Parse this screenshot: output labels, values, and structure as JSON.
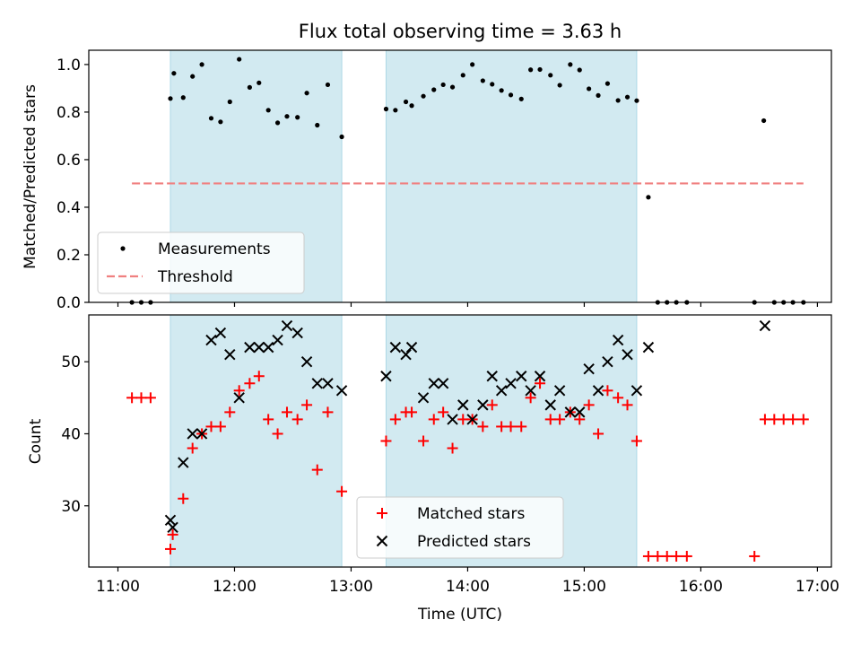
{
  "chart_data": {
    "title": "Flux total observing time = 3.63 h",
    "xlabel": "Time (UTC)",
    "x_unit": "hours UTC",
    "xlim": [
      10.75,
      17.12
    ],
    "xticks": [
      {
        "value": 11,
        "label": "11:00"
      },
      {
        "value": 12,
        "label": "12:00"
      },
      {
        "value": 13,
        "label": "13:00"
      },
      {
        "value": 14,
        "label": "14:00"
      },
      {
        "value": 15,
        "label": "15:00"
      },
      {
        "value": 16,
        "label": "16:00"
      },
      {
        "value": 17,
        "label": "17:00"
      }
    ],
    "observing_windows": [
      [
        11.45,
        12.92
      ],
      [
        13.3,
        15.45
      ]
    ],
    "window_color": "#add8e6",
    "panels": [
      {
        "type": "scatter",
        "ylabel": "Matched/Predicted stars",
        "ylim": [
          0.0,
          1.06
        ],
        "yticks": [
          {
            "value": 0.0,
            "label": "0.0"
          },
          {
            "value": 0.2,
            "label": "0.2"
          },
          {
            "value": 0.4,
            "label": "0.4"
          },
          {
            "value": 0.6,
            "label": "0.6"
          },
          {
            "value": 0.8,
            "label": "0.8"
          },
          {
            "value": 1.0,
            "label": "1.0"
          }
        ],
        "legend": {
          "position": "lower left",
          "entries": [
            {
              "label": "Measurements",
              "marker": "dot",
              "color": "#000000"
            },
            {
              "label": "Threshold",
              "marker": "dashed-line",
              "color": "#f08080"
            }
          ]
        },
        "threshold": {
          "y": 0.5,
          "x": [
            11.12,
            16.88
          ],
          "color": "#f08080"
        },
        "series": [
          {
            "name": "Measurements",
            "color": "#000000",
            "points": [
              [
                11.12,
                0.0
              ],
              [
                11.2,
                0.0
              ],
              [
                11.28,
                0.0
              ],
              [
                11.45,
                0.857
              ],
              [
                11.48,
                0.963
              ],
              [
                11.56,
                0.861
              ],
              [
                11.64,
                0.95
              ],
              [
                11.72,
                1.0
              ],
              [
                11.8,
                0.774
              ],
              [
                11.88,
                0.759
              ],
              [
                11.96,
                0.843
              ],
              [
                12.04,
                1.022
              ],
              [
                12.13,
                0.904
              ],
              [
                12.21,
                0.923
              ],
              [
                12.29,
                0.808
              ],
              [
                12.37,
                0.755
              ],
              [
                12.45,
                0.782
              ],
              [
                12.54,
                0.778
              ],
              [
                12.62,
                0.88
              ],
              [
                12.71,
                0.745
              ],
              [
                12.8,
                0.915
              ],
              [
                12.92,
                0.696
              ],
              [
                13.3,
                0.813
              ],
              [
                13.38,
                0.808
              ],
              [
                13.47,
                0.843
              ],
              [
                13.52,
                0.827
              ],
              [
                13.62,
                0.867
              ],
              [
                13.71,
                0.894
              ],
              [
                13.79,
                0.915
              ],
              [
                13.87,
                0.905
              ],
              [
                13.96,
                0.955
              ],
              [
                14.04,
                1.0
              ],
              [
                14.13,
                0.932
              ],
              [
                14.21,
                0.917
              ],
              [
                14.29,
                0.891
              ],
              [
                14.37,
                0.872
              ],
              [
                14.46,
                0.855
              ],
              [
                14.54,
                0.978
              ],
              [
                14.62,
                0.979
              ],
              [
                14.71,
                0.955
              ],
              [
                14.79,
                0.913
              ],
              [
                14.88,
                1.0
              ],
              [
                14.96,
                0.977
              ],
              [
                15.04,
                0.898
              ],
              [
                15.12,
                0.87
              ],
              [
                15.2,
                0.92
              ],
              [
                15.29,
                0.849
              ],
              [
                15.37,
                0.863
              ],
              [
                15.45,
                0.848
              ],
              [
                15.55,
                0.442
              ],
              [
                15.63,
                0.0
              ],
              [
                15.71,
                0.0
              ],
              [
                15.79,
                0.0
              ],
              [
                15.88,
                0.0
              ],
              [
                16.46,
                0.0
              ],
              [
                16.54,
                0.764
              ],
              [
                16.63,
                0.0
              ],
              [
                16.71,
                0.0
              ],
              [
                16.79,
                0.0
              ],
              [
                16.88,
                0.0
              ]
            ]
          }
        ]
      },
      {
        "type": "scatter",
        "ylabel": "Count",
        "ylim": [
          21.5,
          56.5
        ],
        "yticks": [
          {
            "value": 30,
            "label": "30"
          },
          {
            "value": 40,
            "label": "40"
          },
          {
            "value": 50,
            "label": "50"
          }
        ],
        "legend": {
          "position": "lower center",
          "entries": [
            {
              "label": "Matched stars",
              "marker": "plus",
              "color": "#ff0000"
            },
            {
              "label": "Predicted stars",
              "marker": "x",
              "color": "#000000"
            }
          ]
        },
        "series": [
          {
            "name": "Matched stars",
            "marker": "plus",
            "color": "#ff0000",
            "points": [
              [
                11.12,
                45
              ],
              [
                11.2,
                45
              ],
              [
                11.28,
                45
              ],
              [
                11.45,
                24
              ],
              [
                11.47,
                26
              ],
              [
                11.56,
                31
              ],
              [
                11.64,
                38
              ],
              [
                11.72,
                40
              ],
              [
                11.8,
                41
              ],
              [
                11.88,
                41
              ],
              [
                11.96,
                43
              ],
              [
                12.04,
                46
              ],
              [
                12.13,
                47
              ],
              [
                12.21,
                48
              ],
              [
                12.29,
                42
              ],
              [
                12.37,
                40
              ],
              [
                12.45,
                43
              ],
              [
                12.54,
                42
              ],
              [
                12.62,
                44
              ],
              [
                12.71,
                35
              ],
              [
                12.8,
                43
              ],
              [
                12.92,
                32
              ],
              [
                13.3,
                39
              ],
              [
                13.38,
                42
              ],
              [
                13.47,
                43
              ],
              [
                13.52,
                43
              ],
              [
                13.62,
                39
              ],
              [
                13.71,
                42
              ],
              [
                13.79,
                43
              ],
              [
                13.87,
                38
              ],
              [
                13.96,
                42
              ],
              [
                14.04,
                42
              ],
              [
                14.13,
                41
              ],
              [
                14.21,
                44
              ],
              [
                14.29,
                41
              ],
              [
                14.37,
                41
              ],
              [
                14.46,
                41
              ],
              [
                14.54,
                45
              ],
              [
                14.62,
                47
              ],
              [
                14.71,
                42
              ],
              [
                14.79,
                42
              ],
              [
                14.88,
                43
              ],
              [
                14.96,
                42
              ],
              [
                15.04,
                44
              ],
              [
                15.12,
                40
              ],
              [
                15.2,
                46
              ],
              [
                15.29,
                45
              ],
              [
                15.37,
                44
              ],
              [
                15.45,
                39
              ],
              [
                15.55,
                23
              ],
              [
                15.63,
                23
              ],
              [
                15.71,
                23
              ],
              [
                15.79,
                23
              ],
              [
                15.88,
                23
              ],
              [
                16.46,
                23
              ],
              [
                16.55,
                42
              ],
              [
                16.63,
                42
              ],
              [
                16.71,
                42
              ],
              [
                16.79,
                42
              ],
              [
                16.88,
                42
              ]
            ]
          },
          {
            "name": "Predicted stars",
            "marker": "x",
            "color": "#000000",
            "points": [
              [
                11.45,
                28
              ],
              [
                11.47,
                27
              ],
              [
                11.56,
                36
              ],
              [
                11.64,
                40
              ],
              [
                11.72,
                40
              ],
              [
                11.8,
                53
              ],
              [
                11.88,
                54
              ],
              [
                11.96,
                51
              ],
              [
                12.04,
                45
              ],
              [
                12.13,
                52
              ],
              [
                12.21,
                52
              ],
              [
                12.29,
                52
              ],
              [
                12.37,
                53
              ],
              [
                12.45,
                55
              ],
              [
                12.54,
                54
              ],
              [
                12.62,
                50
              ],
              [
                12.71,
                47
              ],
              [
                12.8,
                47
              ],
              [
                12.92,
                46
              ],
              [
                13.3,
                48
              ],
              [
                13.38,
                52
              ],
              [
                13.47,
                51
              ],
              [
                13.52,
                52
              ],
              [
                13.62,
                45
              ],
              [
                13.71,
                47
              ],
              [
                13.79,
                47
              ],
              [
                13.87,
                42
              ],
              [
                13.96,
                44
              ],
              [
                14.04,
                42
              ],
              [
                14.13,
                44
              ],
              [
                14.21,
                48
              ],
              [
                14.29,
                46
              ],
              [
                14.37,
                47
              ],
              [
                14.46,
                48
              ],
              [
                14.54,
                46
              ],
              [
                14.62,
                48
              ],
              [
                14.71,
                44
              ],
              [
                14.79,
                46
              ],
              [
                14.88,
                43
              ],
              [
                14.96,
                43
              ],
              [
                15.04,
                49
              ],
              [
                15.12,
                46
              ],
              [
                15.2,
                50
              ],
              [
                15.29,
                53
              ],
              [
                15.37,
                51
              ],
              [
                15.45,
                46
              ],
              [
                15.55,
                52
              ],
              [
                16.55,
                55
              ]
            ]
          }
        ]
      }
    ]
  }
}
